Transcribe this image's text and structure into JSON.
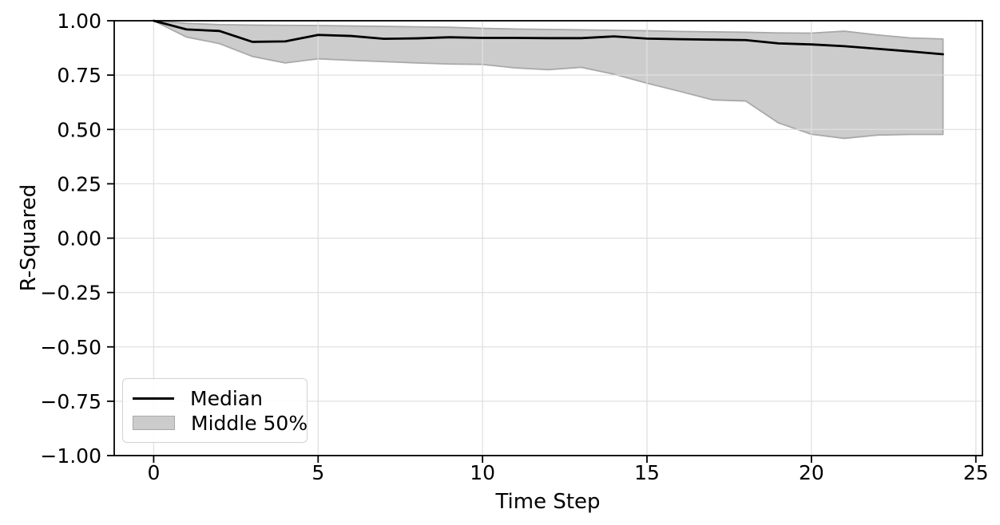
{
  "figure": {
    "background": "#ffffff"
  },
  "chart_data": {
    "type": "line",
    "title": "",
    "xlabel": "Time Step",
    "ylabel": "R-Squared",
    "xlim": [
      -1.2,
      25.2
    ],
    "ylim": [
      -1.0,
      1.0
    ],
    "x_ticks": [
      0,
      5,
      10,
      15,
      20,
      25
    ],
    "x_tick_labels": [
      "0",
      "5",
      "10",
      "15",
      "20",
      "25"
    ],
    "y_ticks": [
      1.0,
      0.75,
      0.5,
      0.25,
      0.0,
      -0.25,
      -0.5,
      -0.75,
      -1.0
    ],
    "y_tick_labels": [
      "1.00",
      "0.75",
      "0.50",
      "0.25",
      "0.00",
      "−0.25",
      "−0.50",
      "−0.75",
      "−1.00"
    ],
    "grid": true,
    "grid_axes": "both",
    "legend_position": "lower left",
    "x": [
      0,
      1,
      2,
      3,
      4,
      5,
      6,
      7,
      8,
      9,
      10,
      11,
      12,
      13,
      14,
      15,
      16,
      17,
      18,
      19,
      20,
      21,
      22,
      23,
      24
    ],
    "series": [
      {
        "name": "Median",
        "type": "line",
        "color": "#000000",
        "linewidth": 2.8,
        "values": [
          1.0,
          0.96,
          0.953,
          0.903,
          0.905,
          0.935,
          0.93,
          0.917,
          0.919,
          0.924,
          0.921,
          0.921,
          0.92,
          0.92,
          0.928,
          0.918,
          0.915,
          0.913,
          0.911,
          0.896,
          0.891,
          0.883,
          0.871,
          0.859,
          0.846
        ]
      },
      {
        "name": "Middle 50%",
        "type": "band",
        "fill": "#cccccc",
        "edge": "#a9a9a9",
        "upper": [
          1.0,
          0.988,
          0.982,
          0.98,
          0.979,
          0.978,
          0.976,
          0.974,
          0.972,
          0.97,
          0.965,
          0.962,
          0.96,
          0.958,
          0.956,
          0.954,
          0.951,
          0.949,
          0.947,
          0.944,
          0.943,
          0.952,
          0.935,
          0.921,
          0.916
        ]
      },
      {
        "name": "Middle 50% lower",
        "type": "band-lower",
        "lower": [
          1.0,
          0.925,
          0.895,
          0.836,
          0.806,
          0.825,
          0.818,
          0.812,
          0.806,
          0.801,
          0.799,
          0.783,
          0.775,
          0.786,
          0.754,
          0.713,
          0.675,
          0.636,
          0.631,
          0.53,
          0.478,
          0.459,
          0.474,
          0.477,
          0.477
        ]
      }
    ],
    "style": {
      "grid_color": "#e0e0e0",
      "axis_color": "#000000",
      "text_color": "#000000",
      "tick_font_size": 25,
      "label_font_size": 26
    }
  },
  "legend": {
    "items": [
      {
        "label": "Median",
        "swatch": "line"
      },
      {
        "label": "Middle 50%",
        "swatch": "patch"
      }
    ]
  }
}
